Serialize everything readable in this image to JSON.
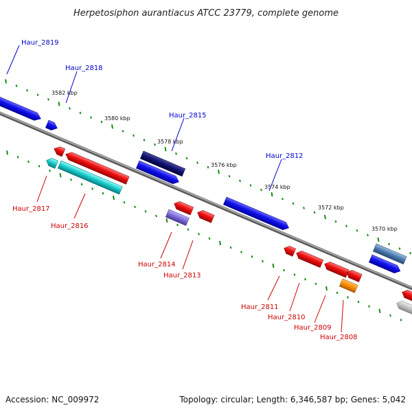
{
  "title": "Herpetosiphon aurantiacus ATCC 23779, complete genome",
  "footer": {
    "accession": "Accession: NC_009972",
    "summary": "Topology: circular; Length: 6,346,587 bp; Genes: 5,042"
  },
  "kbp_labels": [
    "3582 kbp",
    "3580 kbp",
    "3578 kbp",
    "3576 kbp",
    "3574 kbp",
    "3572 kbp",
    "3570 kbp"
  ],
  "genes_top": [
    {
      "name": "Haur_2819",
      "color": "#0000cc"
    },
    {
      "name": "Haur_2818",
      "color": "#0000cc"
    },
    {
      "name": "Haur_2815",
      "color": "#0000cc"
    },
    {
      "name": "Haur_2812",
      "color": "#0000cc"
    }
  ],
  "genes_bottom": [
    {
      "name": "Haur_2817",
      "color": "#cc0000"
    },
    {
      "name": "Haur_2816",
      "color": "#cc0000"
    },
    {
      "name": "Haur_2814",
      "color": "#cc0000"
    },
    {
      "name": "Haur_2813",
      "color": "#cc0000"
    },
    {
      "name": "Haur_2811",
      "color": "#cc0000"
    },
    {
      "name": "Haur_2810",
      "color": "#cc0000"
    },
    {
      "name": "Haur_2809",
      "color": "#cc0000"
    },
    {
      "name": "Haur_2808",
      "color": "#cc0000"
    }
  ],
  "colors": {
    "backbone": "#808080",
    "tick": "#1a8a1a",
    "forward": "#1010ee",
    "reverse": "#ee1010",
    "navy": "#101070",
    "steel": "#4a7ab0",
    "cyan": "#18c8c8",
    "purple": "#7a6ad8",
    "orange": "#ff8c00",
    "grey": "#c0c0c0"
  }
}
